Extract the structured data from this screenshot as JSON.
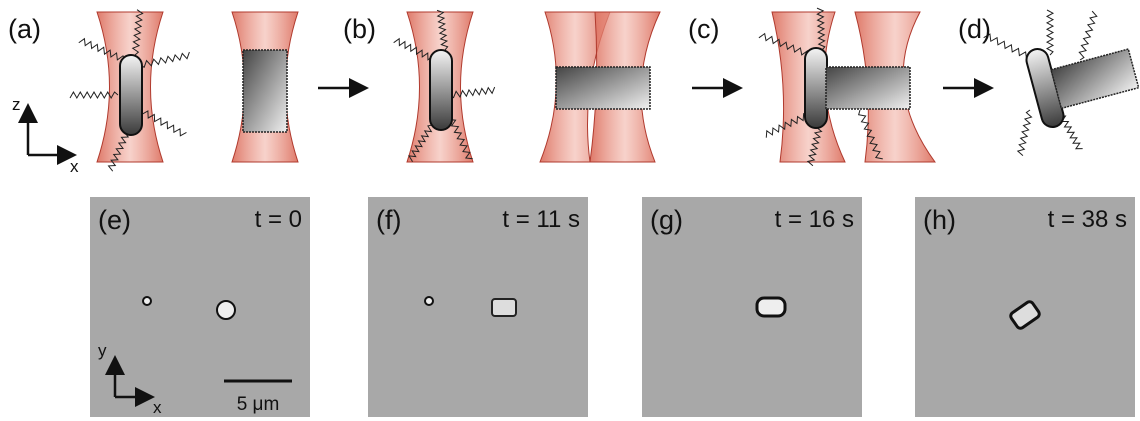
{
  "schematic": {
    "panels": [
      {
        "label": "(a)"
      },
      {
        "label": "(b)"
      },
      {
        "label": "(c)"
      },
      {
        "label": "(d)"
      }
    ],
    "axes": {
      "vertical": "z",
      "horizontal": "x"
    }
  },
  "micrographs": {
    "panels": [
      {
        "label": "(e)",
        "time": "t = 0"
      },
      {
        "label": "(f)",
        "time": "t = 11 s"
      },
      {
        "label": "(g)",
        "time": "t = 16 s"
      },
      {
        "label": "(h)",
        "time": "t = 38 s"
      }
    ],
    "axes": {
      "vertical": "y",
      "horizontal": "x"
    },
    "scale_bar": "5 μm"
  }
}
